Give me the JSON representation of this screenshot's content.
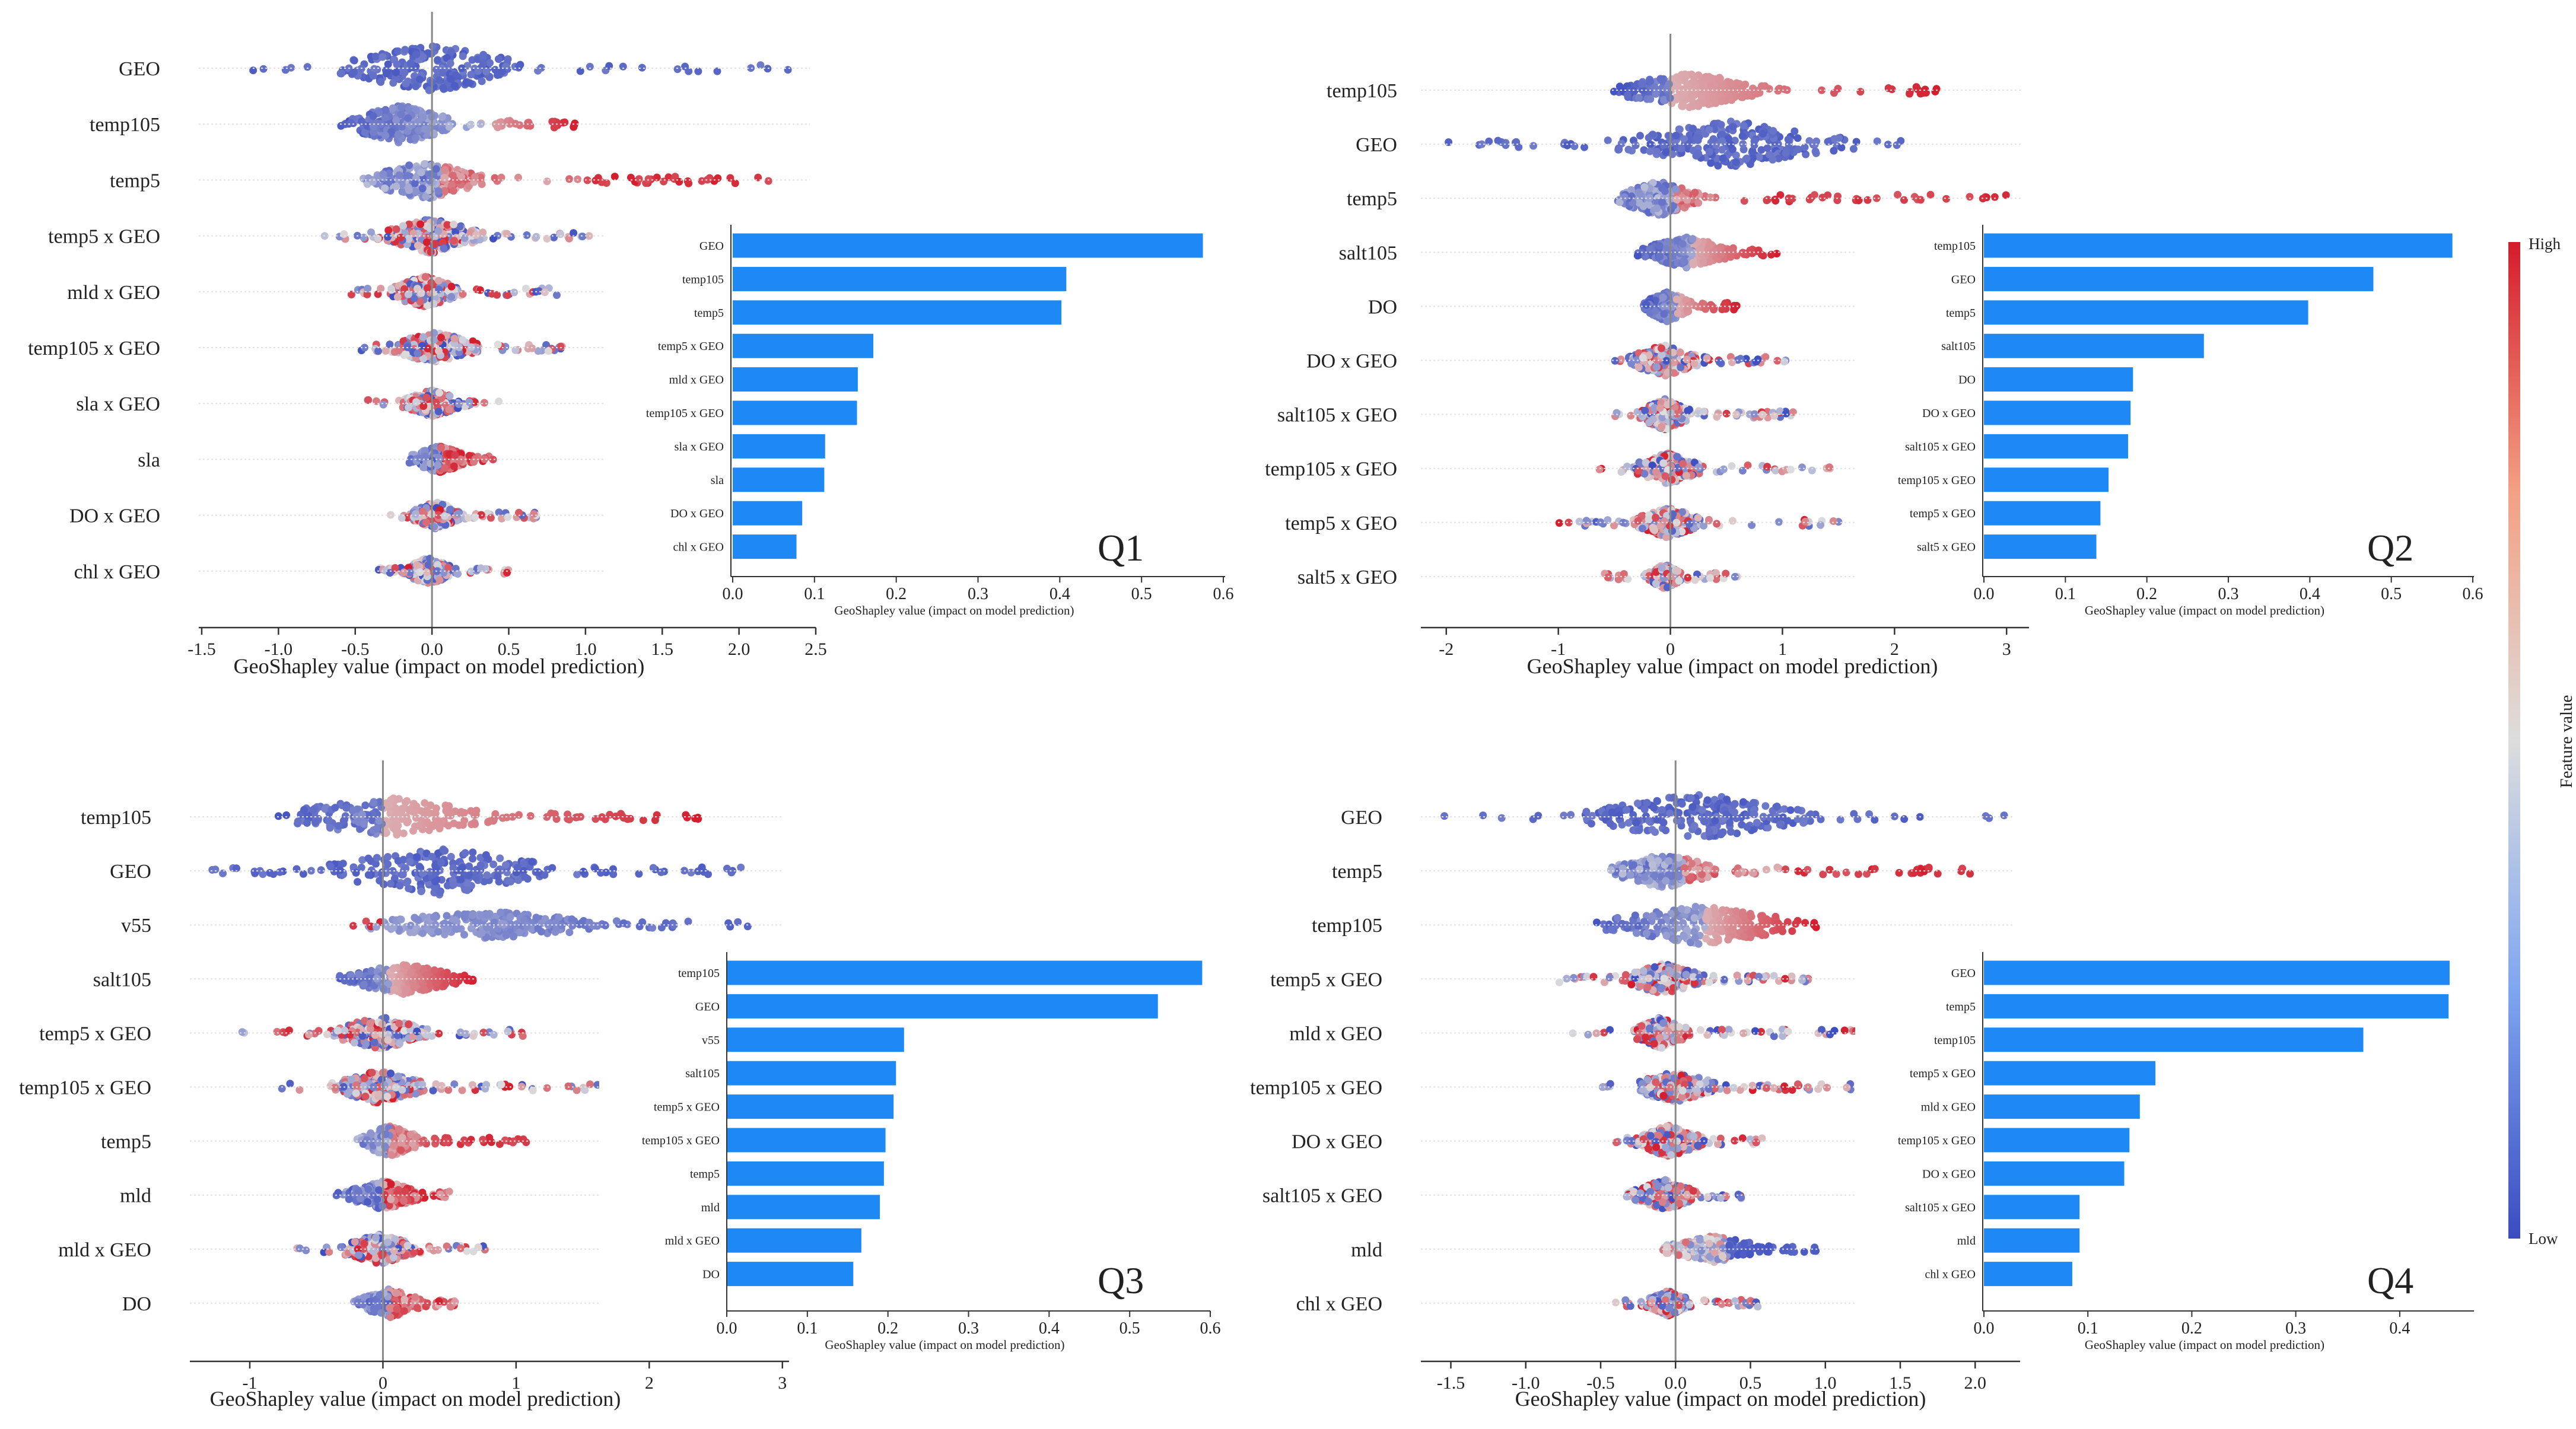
{
  "colorbar": {
    "label": "Feature value",
    "high_label": "High",
    "low_label": "Low",
    "low_color": "#3b4cc0",
    "mid_color": "#dddddd",
    "high_color": "#d41c2c"
  },
  "colors": {
    "bar": "#1e88f5",
    "axis": "#333333",
    "zero_line": "#888888",
    "row_line": "#e2e2e2"
  },
  "chart_data": [
    {
      "type": "scatter",
      "panel_label": "Q1",
      "beeswarm": {
        "features": [
          "GEO",
          "temp105",
          "temp5",
          "temp5 x GEO",
          "mld x GEO",
          "temp105 x GEO",
          "sla x GEO",
          "sla",
          "DO x GEO",
          "chl x GEO"
        ],
        "xlim": [
          -1.5,
          2.5
        ],
        "ticks": [
          -1.5,
          -1.0,
          -0.5,
          0.0,
          0.5,
          1.0,
          1.5,
          2.0,
          2.5
        ],
        "tick_labels": [
          "-1.5",
          "-1.0",
          "-0.5",
          "0.0",
          "0.5",
          "1.0",
          "1.5",
          "2.0",
          "2.5"
        ],
        "xlabel": "GeoShapley value (impact on model prediction)",
        "rows": [
          {
            "range": [
              -1.38,
              2.35
            ],
            "core": [
              -0.7,
              0.7
            ],
            "pattern": "geo",
            "spread": 1.0
          },
          {
            "range": [
              -0.62,
              0.95
            ],
            "core": [
              -0.6,
              0.2
            ],
            "pattern": "bimodal",
            "split": 0.32,
            "spread": 0.8
          },
          {
            "range": [
              -0.45,
              2.2
            ],
            "core": [
              -0.45,
              0.35
            ],
            "pattern": "tail",
            "split": 1.0,
            "spread": 0.8
          },
          {
            "range": [
              -0.7,
              1.05
            ],
            "core": [
              -0.35,
              0.35
            ],
            "pattern": "mixed",
            "spread": 0.7
          },
          {
            "range": [
              -0.55,
              0.85
            ],
            "core": [
              -0.3,
              0.2
            ],
            "pattern": "mixed",
            "spread": 0.6
          },
          {
            "range": [
              -0.5,
              0.9
            ],
            "core": [
              -0.3,
              0.35
            ],
            "pattern": "mixed",
            "spread": 0.6
          },
          {
            "range": [
              -0.45,
              0.45
            ],
            "core": [
              -0.2,
              0.2
            ],
            "pattern": "mixed",
            "spread": 0.5
          },
          {
            "range": [
              -0.15,
              0.4
            ],
            "core": [
              -0.15,
              0.25
            ],
            "pattern": "split",
            "split": 0.05,
            "spread": 0.5
          },
          {
            "range": [
              -0.3,
              0.7
            ],
            "core": [
              -0.15,
              0.2
            ],
            "pattern": "mixed",
            "spread": 0.5
          },
          {
            "range": [
              -0.35,
              0.5
            ],
            "core": [
              -0.2,
              0.15
            ],
            "pattern": "mixed",
            "spread": 0.5
          }
        ]
      },
      "bar": {
        "categories": [
          "GEO",
          "temp105",
          "temp5",
          "temp5 x GEO",
          "mld x GEO",
          "temp105 x GEO",
          "sla x GEO",
          "sla",
          "DO x GEO",
          "chl x GEO"
        ],
        "values": [
          0.575,
          0.408,
          0.402,
          0.172,
          0.153,
          0.152,
          0.113,
          0.112,
          0.085,
          0.078
        ],
        "xlim": [
          0,
          0.6
        ],
        "ticks": [
          0.0,
          0.1,
          0.2,
          0.3,
          0.4,
          0.5,
          0.6
        ],
        "tick_labels": [
          "0.0",
          "0.1",
          "0.2",
          "0.3",
          "0.4",
          "0.5",
          "0.6"
        ],
        "xlabel": "GeoShapley value (impact on model prediction)"
      }
    },
    {
      "type": "scatter",
      "panel_label": "Q2",
      "beeswarm": {
        "features": [
          "temp105",
          "GEO",
          "temp5",
          "salt105",
          "DO",
          "DO x GEO",
          "salt105 x GEO",
          "temp105 x GEO",
          "temp5 x GEO",
          "salt5 x GEO"
        ],
        "xlim": [
          -2.2,
          3.2
        ],
        "ticks": [
          -2,
          -1,
          0,
          1,
          2,
          3
        ],
        "tick_labels": [
          "-2",
          "-1",
          "0",
          "1",
          "2",
          "3"
        ],
        "xlabel": "GeoShapley value (impact on model prediction)",
        "rows": [
          {
            "range": [
              -0.55,
              2.4
            ],
            "core": [
              -0.55,
              0.9
            ],
            "pattern": "bimodal",
            "split": 0.0,
            "spread": 0.7
          },
          {
            "range": [
              -2.0,
              2.1
            ],
            "core": [
              -0.6,
              1.7
            ],
            "pattern": "geo",
            "spread": 1.0
          },
          {
            "range": [
              -0.5,
              3.0
            ],
            "core": [
              -0.5,
              0.3
            ],
            "pattern": "tail",
            "split": 0.8,
            "spread": 0.7
          },
          {
            "range": [
              -0.3,
              0.95
            ],
            "core": [
              -0.3,
              0.6
            ],
            "pattern": "bimodal",
            "split": 0.2,
            "spread": 0.6
          },
          {
            "range": [
              -0.25,
              0.6
            ],
            "core": [
              -0.25,
              0.2
            ],
            "pattern": "bimodal",
            "split": 0.05,
            "spread": 0.6
          },
          {
            "range": [
              -0.5,
              1.1
            ],
            "core": [
              -0.4,
              0.3
            ],
            "pattern": "mixed",
            "spread": 0.6
          },
          {
            "range": [
              -0.5,
              1.1
            ],
            "core": [
              -0.3,
              0.2
            ],
            "pattern": "mixed",
            "spread": 0.6
          },
          {
            "range": [
              -0.65,
              1.45
            ],
            "core": [
              -0.35,
              0.3
            ],
            "pattern": "mixed",
            "spread": 0.6
          },
          {
            "range": [
              -1.05,
              1.6
            ],
            "core": [
              -0.35,
              0.3
            ],
            "pattern": "mixed",
            "spread": 0.6
          },
          {
            "range": [
              -0.6,
              0.6
            ],
            "core": [
              -0.2,
              0.1
            ],
            "pattern": "mixed",
            "spread": 0.45
          }
        ]
      },
      "bar": {
        "categories": [
          "temp105",
          "GEO",
          "temp5",
          "salt105",
          "DO",
          "DO x GEO",
          "salt105 x GEO",
          "temp105 x GEO",
          "temp5 x GEO",
          "salt5 x GEO"
        ],
        "values": [
          0.575,
          0.478,
          0.398,
          0.27,
          0.183,
          0.18,
          0.177,
          0.153,
          0.143,
          0.138
        ],
        "xlim": [
          0,
          0.6
        ],
        "ticks": [
          0.0,
          0.1,
          0.2,
          0.3,
          0.4,
          0.5,
          0.6
        ],
        "tick_labels": [
          "0.0",
          "0.1",
          "0.2",
          "0.3",
          "0.4",
          "0.5",
          "0.6"
        ],
        "xlabel": "GeoShapley value (impact on model prediction)"
      }
    },
    {
      "type": "scatter",
      "panel_label": "Q3",
      "beeswarm": {
        "features": [
          "temp105",
          "GEO",
          "v55",
          "salt105",
          "temp5 x GEO",
          "temp105 x GEO",
          "temp5",
          "mld",
          "mld x GEO",
          "DO"
        ],
        "xlim": [
          -1.45,
          3.05
        ],
        "ticks": [
          -1,
          0,
          1,
          2,
          3
        ],
        "tick_labels": [
          "-1",
          "0",
          "1",
          "2",
          "3"
        ],
        "xlabel": "GeoShapley value (impact on model prediction)",
        "rows": [
          {
            "range": [
              -0.85,
              2.4
            ],
            "core": [
              -0.85,
              0.9
            ],
            "pattern": "bimodal",
            "split": 0.0,
            "spread": 0.8
          },
          {
            "range": [
              -1.3,
              2.75
            ],
            "core": [
              -0.55,
              1.4
            ],
            "pattern": "geo",
            "spread": 1.0
          },
          {
            "range": [
              -0.25,
              2.75
            ],
            "core": [
              -0.2,
              1.8
            ],
            "pattern": "v55",
            "spread": 0.5
          },
          {
            "range": [
              -0.35,
              0.7
            ],
            "core": [
              -0.3,
              0.6
            ],
            "pattern": "bimodal",
            "split": 0.05,
            "spread": 0.6
          },
          {
            "range": [
              -1.1,
              1.1
            ],
            "core": [
              -0.4,
              0.35
            ],
            "pattern": "mixed",
            "spread": 0.65
          },
          {
            "range": [
              -0.9,
              1.75
            ],
            "core": [
              -0.4,
              0.35
            ],
            "pattern": "mixed",
            "spread": 0.65
          },
          {
            "range": [
              -0.2,
              1.1
            ],
            "core": [
              -0.2,
              0.3
            ],
            "pattern": "tail",
            "split": 0.4,
            "spread": 0.6
          },
          {
            "range": [
              -0.35,
              0.5
            ],
            "core": [
              -0.3,
              0.3
            ],
            "pattern": "split",
            "split": 0.0,
            "spread": 0.55
          },
          {
            "range": [
              -0.65,
              0.8
            ],
            "core": [
              -0.35,
              0.3
            ],
            "pattern": "mixed",
            "spread": 0.55
          },
          {
            "range": [
              -0.25,
              0.55
            ],
            "core": [
              -0.2,
              0.3
            ],
            "pattern": "split",
            "split": 0.05,
            "spread": 0.55
          }
        ]
      },
      "bar": {
        "categories": [
          "temp105",
          "GEO",
          "v55",
          "salt105",
          "temp5 x GEO",
          "temp105 x GEO",
          "temp5",
          "mld",
          "mld x GEO",
          "DO"
        ],
        "values": [
          0.59,
          0.535,
          0.22,
          0.21,
          0.207,
          0.197,
          0.195,
          0.19,
          0.167,
          0.157
        ],
        "xlim": [
          0,
          0.6
        ],
        "ticks": [
          0.0,
          0.1,
          0.2,
          0.3,
          0.4,
          0.5,
          0.6
        ],
        "tick_labels": [
          "0.0",
          "0.1",
          "0.2",
          "0.3",
          "0.4",
          "0.5",
          "0.6"
        ],
        "xlabel": "GeoShapley value (impact on model prediction)"
      }
    },
    {
      "type": "scatter",
      "panel_label": "Q4",
      "beeswarm": {
        "features": [
          "GEO",
          "temp5",
          "temp105",
          "temp5 x GEO",
          "mld x GEO",
          "temp105 x GEO",
          "DO x GEO",
          "salt105 x GEO",
          "mld",
          "chl x GEO"
        ],
        "xlim": [
          -1.7,
          2.3
        ],
        "ticks": [
          -1.5,
          -1.0,
          -0.5,
          0.0,
          0.5,
          1.0,
          1.5,
          2.0
        ],
        "tick_labels": [
          "-1.5",
          "-1.0",
          "-0.5",
          "0.0",
          "0.5",
          "1.0",
          "1.5",
          "2.0"
        ],
        "xlabel": "GeoShapley value (impact on model prediction)",
        "rows": [
          {
            "range": [
              -1.55,
              2.2
            ],
            "core": [
              -0.7,
              1.0
            ],
            "pattern": "geo",
            "spread": 1.0
          },
          {
            "range": [
              -0.45,
              2.05
            ],
            "core": [
              -0.45,
              0.3
            ],
            "pattern": "tail",
            "split": 0.7,
            "spread": 0.7
          },
          {
            "range": [
              -0.55,
              0.95
            ],
            "core": [
              -0.55,
              0.9
            ],
            "pattern": "bimodal",
            "split": 0.2,
            "spread": 0.8
          },
          {
            "range": [
              -0.8,
              0.9
            ],
            "core": [
              -0.35,
              0.2
            ],
            "pattern": "mixed",
            "spread": 0.6
          },
          {
            "range": [
              -0.75,
              1.25
            ],
            "core": [
              -0.3,
              0.1
            ],
            "pattern": "mixed",
            "spread": 0.6
          },
          {
            "range": [
              -0.55,
              1.35
            ],
            "core": [
              -0.3,
              0.3
            ],
            "pattern": "mixed",
            "spread": 0.6
          },
          {
            "range": [
              -0.4,
              0.6
            ],
            "core": [
              -0.3,
              0.2
            ],
            "pattern": "mixed",
            "spread": 0.6
          },
          {
            "range": [
              -0.35,
              0.45
            ],
            "core": [
              -0.3,
              0.15
            ],
            "pattern": "mixed",
            "spread": 0.6
          },
          {
            "range": [
              -0.15,
              1.0
            ],
            "core": [
              -0.1,
              0.6
            ],
            "pattern": "mld",
            "spread": 0.5
          },
          {
            "range": [
              -0.4,
              0.55
            ],
            "core": [
              -0.2,
              0.1
            ],
            "pattern": "mixed",
            "spread": 0.45
          }
        ]
      },
      "bar": {
        "categories": [
          "GEO",
          "temp5",
          "temp105",
          "temp5 x GEO",
          "mld x GEO",
          "temp105 x GEO",
          "DO x GEO",
          "salt105 x GEO",
          "mld",
          "chl x GEO"
        ],
        "values": [
          0.448,
          0.447,
          0.365,
          0.165,
          0.15,
          0.14,
          0.135,
          0.092,
          0.092,
          0.085
        ],
        "xlim": [
          0,
          0.46
        ],
        "ticks": [
          0.0,
          0.1,
          0.2,
          0.3,
          0.4
        ],
        "tick_labels": [
          "0.0",
          "0.1",
          "0.2",
          "0.3",
          "0.4"
        ],
        "xlabel": "GeoShapley value (impact on model prediction)"
      }
    }
  ]
}
